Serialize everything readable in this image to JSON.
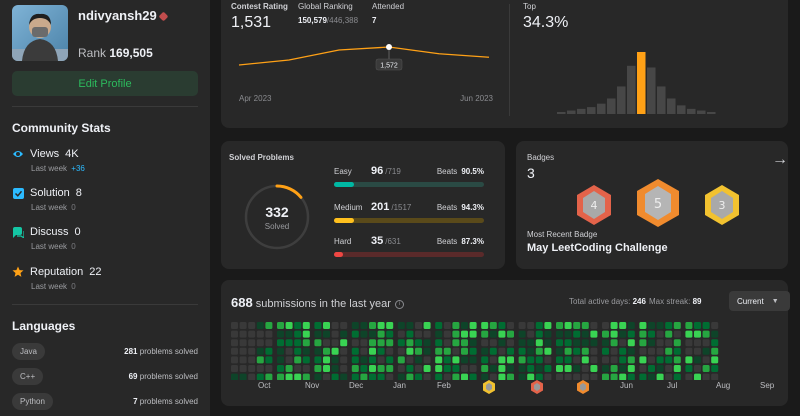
{
  "profile": {
    "username": "ndivyansh29",
    "rank_label": "Rank",
    "rank_value": "169,505",
    "edit_button": "Edit Profile"
  },
  "community": {
    "title": "Community Stats",
    "items": [
      {
        "icon": "eye-icon",
        "label": "Views",
        "value": "4K",
        "sub": "Last week",
        "delta": "+36",
        "color": "#2cbbff"
      },
      {
        "icon": "check-square-icon",
        "label": "Solution",
        "value": "8",
        "sub": "Last week",
        "delta": "0",
        "color": "#2cbbff"
      },
      {
        "icon": "chat-icon",
        "label": "Discuss",
        "value": "0",
        "sub": "Last week",
        "delta": "0",
        "color": "#14c6a4"
      },
      {
        "icon": "star-icon",
        "label": "Reputation",
        "value": "22",
        "sub": "Last week",
        "delta": "0",
        "color": "#ffa116"
      }
    ]
  },
  "languages": {
    "title": "Languages",
    "items": [
      {
        "name": "Java",
        "count": "281",
        "suffix": "problems solved"
      },
      {
        "name": "C++",
        "count": "69",
        "suffix": "problems solved"
      },
      {
        "name": "Python",
        "count": "7",
        "suffix": "problems solved"
      }
    ]
  },
  "contest": {
    "rating_label": "Contest Rating",
    "rating_value": "1,531",
    "global_label": "Global Ranking",
    "global_value": "150,579",
    "global_total": "/446,388",
    "attended_label": "Attended",
    "attended_value": "7",
    "tooltip": "1,572",
    "x_start": "Apr 2023",
    "x_end": "Jun 2023",
    "top_label": "Top",
    "top_value": "34.3%"
  },
  "chart_data": [
    {
      "type": "line",
      "x": [
        "Apr 2023",
        "",
        "",
        "",
        "",
        "Jun 2023"
      ],
      "series": [
        {
          "values": [
            1500,
            1520,
            1560,
            1572,
            1545,
            1531
          ]
        }
      ],
      "ylim": [
        1480,
        1600
      ],
      "highlight_value": 1572,
      "grid": false
    },
    {
      "type": "bar",
      "values": [
        1,
        2,
        3,
        4,
        6,
        9,
        16,
        28,
        36,
        27,
        16,
        9,
        5,
        3,
        2,
        1
      ],
      "highlight_index": 8,
      "grid": false
    }
  ],
  "solved": {
    "title": "Solved Problems",
    "total": "332",
    "total_label": "Solved",
    "ring_fraction": 0.14,
    "difficulties": [
      {
        "name": "Easy",
        "count": "96",
        "total": "/719",
        "beats_label": "Beats",
        "beats": "90.5%",
        "fraction": 0.13,
        "color": "#00b8a3",
        "track": "#2a4a44"
      },
      {
        "name": "Medium",
        "count": "201",
        "total": "/1517",
        "beats_label": "Beats",
        "beats": "94.3%",
        "fraction": 0.13,
        "color": "#ffc01e",
        "track": "#5a4a1a"
      },
      {
        "name": "Hard",
        "count": "35",
        "total": "/631",
        "beats_label": "Beats",
        "beats": "87.3%",
        "fraction": 0.06,
        "color": "#ef4743",
        "track": "#5a2a2a"
      }
    ]
  },
  "badges": {
    "label": "Badges",
    "count": "3",
    "recent_label": "Most Recent Badge",
    "recent_name": "May LeetCoding Challenge",
    "arrow": "→",
    "items": [
      {
        "glyph": "4",
        "color": "#e3634a"
      },
      {
        "glyph": "5",
        "color": "#f08b2e"
      },
      {
        "glyph": "3",
        "color": "#f2c230"
      }
    ]
  },
  "submissions": {
    "count": "688",
    "title_suffix": "submissions in the last year",
    "active_label": "Total active days:",
    "active_value": "246",
    "streak_label": "Max streak:",
    "streak_value": "89",
    "select_value": "Current",
    "months": [
      "Oct",
      "Nov",
      "Dec",
      "Jan",
      "Feb",
      "Mar",
      "Apr",
      "May",
      "Jun",
      "Jul",
      "Aug",
      "Sep"
    ]
  }
}
